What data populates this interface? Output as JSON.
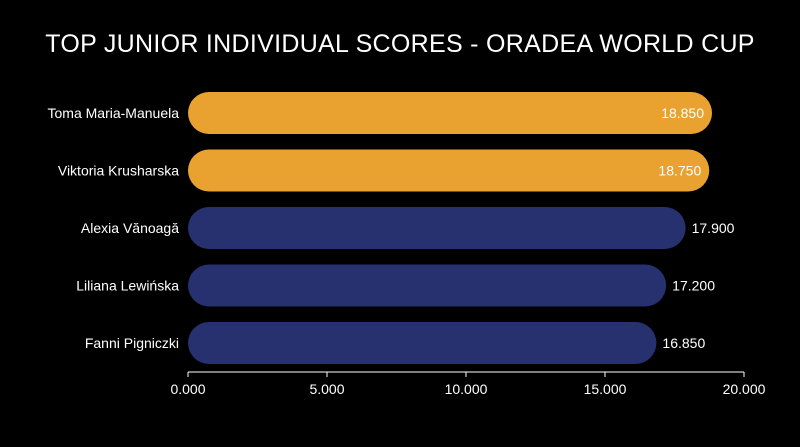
{
  "chart_data": {
    "type": "bar",
    "orientation": "horizontal",
    "title": "TOP JUNIOR INDIVIDUAL SCORES - ORADEA WORLD CUP",
    "categories": [
      "Toma Maria-Manuela",
      "Viktoria Krusharska",
      "Alexia Vănoagă",
      "Liliana Lewińska",
      "Fanni Pigniczki"
    ],
    "values": [
      18.85,
      18.75,
      17.9,
      17.2,
      16.85
    ],
    "value_labels": [
      "18.850",
      "18.750",
      "17.900",
      "17.200",
      "16.850"
    ],
    "bar_colors": [
      "#e9a22f",
      "#e9a22f",
      "#273170",
      "#273170",
      "#273170"
    ],
    "xlim": [
      0,
      20
    ],
    "ticks": [
      0,
      5,
      10,
      15,
      20
    ],
    "tick_labels": [
      "0.000",
      "5.000",
      "10.000",
      "15.000",
      "20.000"
    ],
    "grid": false,
    "legend": "none"
  }
}
